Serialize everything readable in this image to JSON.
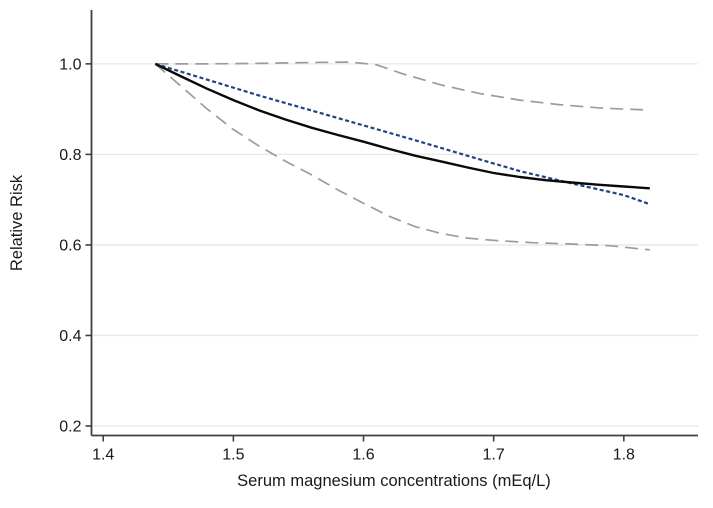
{
  "figure": {
    "background": "#ffffff"
  },
  "chart_data": {
    "type": "line",
    "title": "",
    "xlabel": "Serum magnesium concentrations (mEq/L)",
    "ylabel": "Relative Risk",
    "xlim": [
      1.391,
      1.857
    ],
    "ylim": [
      0.179,
      1.119
    ],
    "grid": "horizontal-light",
    "legend_position": "none",
    "x_ticks": [
      {
        "value": 1.4,
        "label": "1.4"
      },
      {
        "value": 1.5,
        "label": "1.5"
      },
      {
        "value": 1.6,
        "label": "1.6"
      },
      {
        "value": 1.7,
        "label": "1.7"
      },
      {
        "value": 1.8,
        "label": "1.8"
      }
    ],
    "y_ticks": [
      {
        "value": 1.0,
        "label": "1.0"
      },
      {
        "value": 0.8,
        "label": "0.8"
      },
      {
        "value": 0.6,
        "label": "0.6"
      },
      {
        "value": 0.4,
        "label": "0.4"
      },
      {
        "value": 0.2,
        "label": "0.2"
      }
    ],
    "colors": {
      "axis": "#3f3f3f",
      "grid": "#e8e8e8",
      "black_curve": "#0a0a0a",
      "blue_line": "#1f4480",
      "gray_ci": "#9c9c9c",
      "text": "#1a1a1a"
    },
    "series": [
      {
        "name": "gray-dashed-upper",
        "style": "long-dash",
        "color": "#9c9c9c",
        "width": 1.7,
        "points": [
          [
            1.44,
            1.0
          ],
          [
            1.48,
            1.0
          ],
          [
            1.52,
            1.001
          ],
          [
            1.56,
            1.003
          ],
          [
            1.59,
            1.004
          ],
          [
            1.61,
            0.998
          ],
          [
            1.63,
            0.978
          ],
          [
            1.66,
            0.953
          ],
          [
            1.69,
            0.934
          ],
          [
            1.72,
            0.92
          ],
          [
            1.75,
            0.91
          ],
          [
            1.78,
            0.903
          ],
          [
            1.8,
            0.9
          ],
          [
            1.82,
            0.898
          ]
        ]
      },
      {
        "name": "gray-dashed-lower",
        "style": "long-dash",
        "color": "#9c9c9c",
        "width": 1.7,
        "points": [
          [
            1.44,
            1.0
          ],
          [
            1.46,
            0.95
          ],
          [
            1.48,
            0.9
          ],
          [
            1.5,
            0.855
          ],
          [
            1.52,
            0.818
          ],
          [
            1.54,
            0.785
          ],
          [
            1.56,
            0.755
          ],
          [
            1.58,
            0.722
          ],
          [
            1.6,
            0.692
          ],
          [
            1.62,
            0.663
          ],
          [
            1.64,
            0.64
          ],
          [
            1.66,
            0.625
          ],
          [
            1.68,
            0.615
          ],
          [
            1.7,
            0.61
          ],
          [
            1.73,
            0.605
          ],
          [
            1.76,
            0.602
          ],
          [
            1.79,
            0.598
          ],
          [
            1.82,
            0.589
          ]
        ]
      },
      {
        "name": "blue-dashed-line",
        "style": "short-dash",
        "color": "#1f4480",
        "width": 2.2,
        "points": [
          [
            1.44,
            1.0
          ],
          [
            1.48,
            0.965
          ],
          [
            1.52,
            0.93
          ],
          [
            1.56,
            0.897
          ],
          [
            1.6,
            0.864
          ],
          [
            1.64,
            0.831
          ],
          [
            1.68,
            0.797
          ],
          [
            1.72,
            0.763
          ],
          [
            1.76,
            0.736
          ],
          [
            1.8,
            0.71
          ],
          [
            1.82,
            0.69
          ]
        ]
      },
      {
        "name": "black-solid-curve",
        "style": "solid",
        "color": "#0a0a0a",
        "width": 2.4,
        "points": [
          [
            1.44,
            1.0
          ],
          [
            1.46,
            0.972
          ],
          [
            1.48,
            0.945
          ],
          [
            1.5,
            0.92
          ],
          [
            1.52,
            0.897
          ],
          [
            1.54,
            0.877
          ],
          [
            1.56,
            0.859
          ],
          [
            1.58,
            0.843
          ],
          [
            1.6,
            0.828
          ],
          [
            1.62,
            0.812
          ],
          [
            1.64,
            0.797
          ],
          [
            1.66,
            0.784
          ],
          [
            1.68,
            0.771
          ],
          [
            1.7,
            0.759
          ],
          [
            1.72,
            0.75
          ],
          [
            1.74,
            0.743
          ],
          [
            1.76,
            0.738
          ],
          [
            1.78,
            0.733
          ],
          [
            1.8,
            0.729
          ],
          [
            1.82,
            0.725
          ]
        ]
      }
    ]
  }
}
